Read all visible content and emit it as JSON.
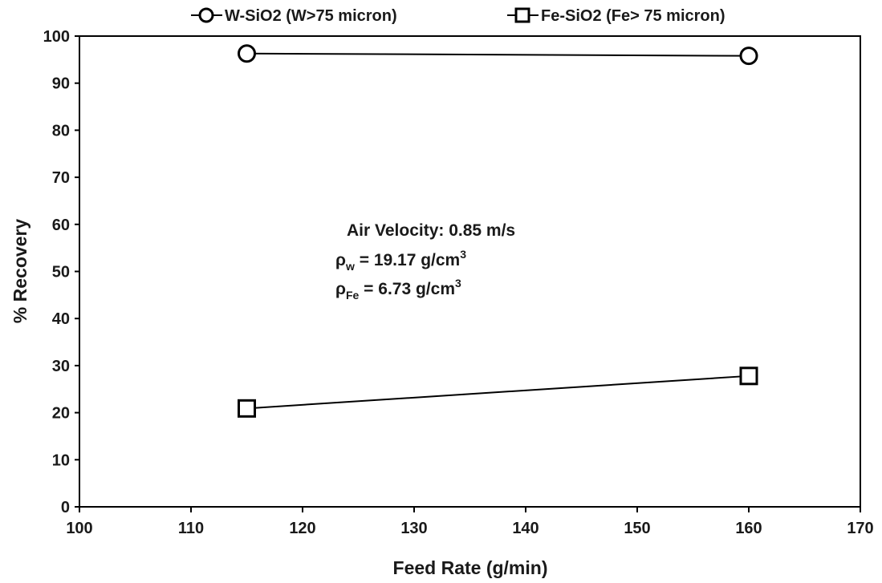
{
  "chart_data": {
    "type": "line",
    "xlabel": "Feed Rate (g/min)",
    "ylabel": "% Recovery",
    "xlim": [
      100,
      170
    ],
    "ylim": [
      0,
      100
    ],
    "xticks": [
      100,
      110,
      120,
      130,
      140,
      150,
      160,
      170
    ],
    "yticks": [
      0,
      10,
      20,
      30,
      40,
      50,
      60,
      70,
      80,
      90,
      100
    ],
    "grid": false,
    "legend_position": "top",
    "series": [
      {
        "name": "W-SiO2 (W>75 micron)",
        "marker": "circle",
        "x": [
          115,
          160
        ],
        "y": [
          96.3,
          95.8
        ]
      },
      {
        "name": "Fe-SiO2 (Fe> 75 micron)",
        "marker": "square",
        "x": [
          115,
          160
        ],
        "y": [
          20.9,
          27.8
        ]
      }
    ],
    "annotations": {
      "line1": "Air Velocity: 0.85 m/s",
      "rho": "ρ",
      "rho_w_sub": "w",
      "rho_w_val": " = 19.17 g/cm",
      "rho_fe_sub": "Fe",
      "rho_fe_val": "  = 6.73 g/cm",
      "sup3": "3"
    }
  }
}
